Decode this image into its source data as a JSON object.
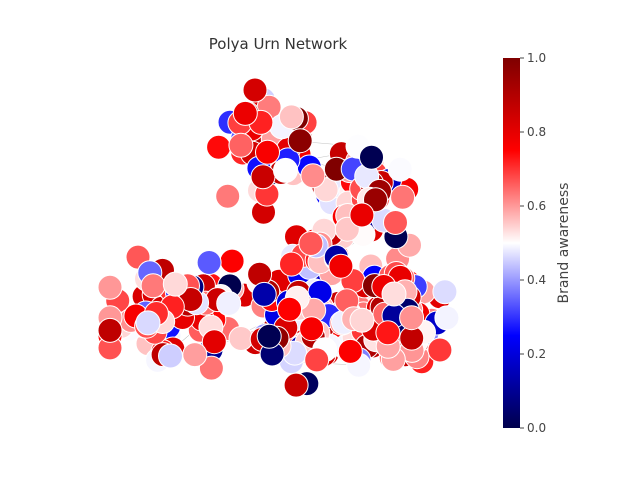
{
  "chart_data": {
    "type": "network",
    "title": "Polya Urn Network",
    "node_count": 420,
    "colormap": "seismic",
    "node_value_range": [
      0.0,
      1.0
    ],
    "colorbar": {
      "label": "Brand awareness",
      "ticks": [
        0.0,
        0.2,
        0.4,
        0.6,
        0.8,
        1.0
      ],
      "tick_labels": [
        "0.0",
        "0.2",
        "0.4",
        "0.6",
        "0.8",
        "1.0"
      ],
      "colors": {
        "low": "#00004c",
        "mid_low": "#0000ff",
        "mid": "#ffffff",
        "mid_high": "#ff0000",
        "high": "#7f0000"
      }
    },
    "axes": "off",
    "grid": false
  }
}
